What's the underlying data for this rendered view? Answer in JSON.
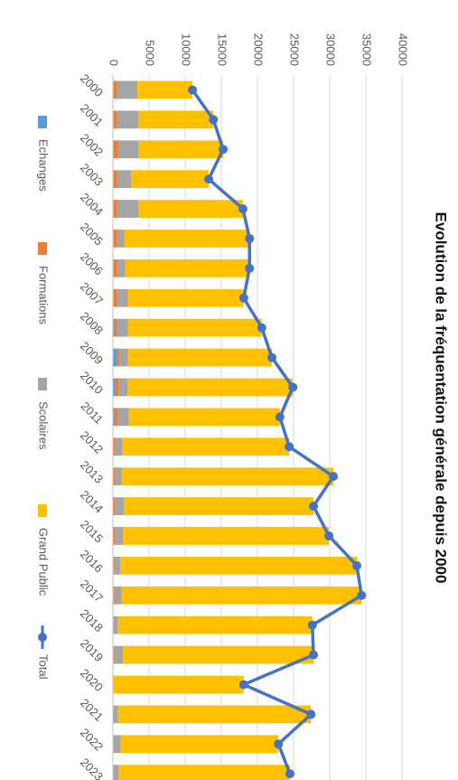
{
  "chart_data": {
    "type": "bar",
    "stacked": true,
    "title": "Evolution de la fréquentation générale depuis 2000",
    "categories": [
      "2000",
      "2001",
      "2002",
      "2003",
      "2004",
      "2005",
      "2006",
      "2007",
      "2008",
      "2009",
      "2010",
      "2011",
      "2012",
      "2013",
      "2014",
      "2015",
      "2016",
      "2017",
      "2018",
      "2019",
      "2020",
      "2021",
      "2022",
      "2023"
    ],
    "series": [
      {
        "name": "Echanges",
        "color": "#5b9bd5",
        "values": [
          100,
          100,
          100,
          100,
          100,
          100,
          100,
          100,
          200,
          600,
          300,
          200,
          100,
          100,
          100,
          100,
          100,
          100,
          0,
          100,
          0,
          0,
          0,
          0
        ]
      },
      {
        "name": "Formations",
        "color": "#ed7d31",
        "values": [
          500,
          500,
          600,
          500,
          500,
          400,
          500,
          400,
          400,
          300,
          500,
          500,
          200,
          200,
          200,
          200,
          100,
          100,
          100,
          100,
          0,
          100,
          100,
          100
        ]
      },
      {
        "name": "Scolaires",
        "color": "#a5a5a5",
        "values": [
          2800,
          2900,
          2800,
          1900,
          2900,
          1100,
          1100,
          1600,
          1500,
          1200,
          1200,
          1500,
          1000,
          900,
          1200,
          1100,
          800,
          1000,
          600,
          1200,
          100,
          600,
          1000,
          700
        ]
      },
      {
        "name": "Grand Public",
        "color": "#ffc000",
        "values": [
          7600,
          10400,
          11750,
          10750,
          14500,
          17300,
          17200,
          16000,
          18500,
          19900,
          22900,
          20900,
          23100,
          29300,
          26250,
          28500,
          32750,
          33200,
          26900,
          26350,
          18000,
          26700,
          21800,
          23700
        ]
      },
      {
        "name": "Total",
        "color": "#4472c4",
        "type": "line",
        "values": [
          11000,
          13900,
          15250,
          13250,
          18000,
          18900,
          18900,
          18100,
          20600,
          22000,
          24900,
          23100,
          24400,
          30500,
          27750,
          29900,
          33750,
          34400,
          27600,
          27750,
          18100,
          27400,
          22900,
          24500
        ]
      }
    ],
    "ylim": [
      0,
      40000
    ],
    "yticks": [
      0,
      5000,
      10000,
      15000,
      20000,
      25000,
      30000,
      35000,
      40000
    ],
    "grid": true,
    "legend": "bottom"
  }
}
